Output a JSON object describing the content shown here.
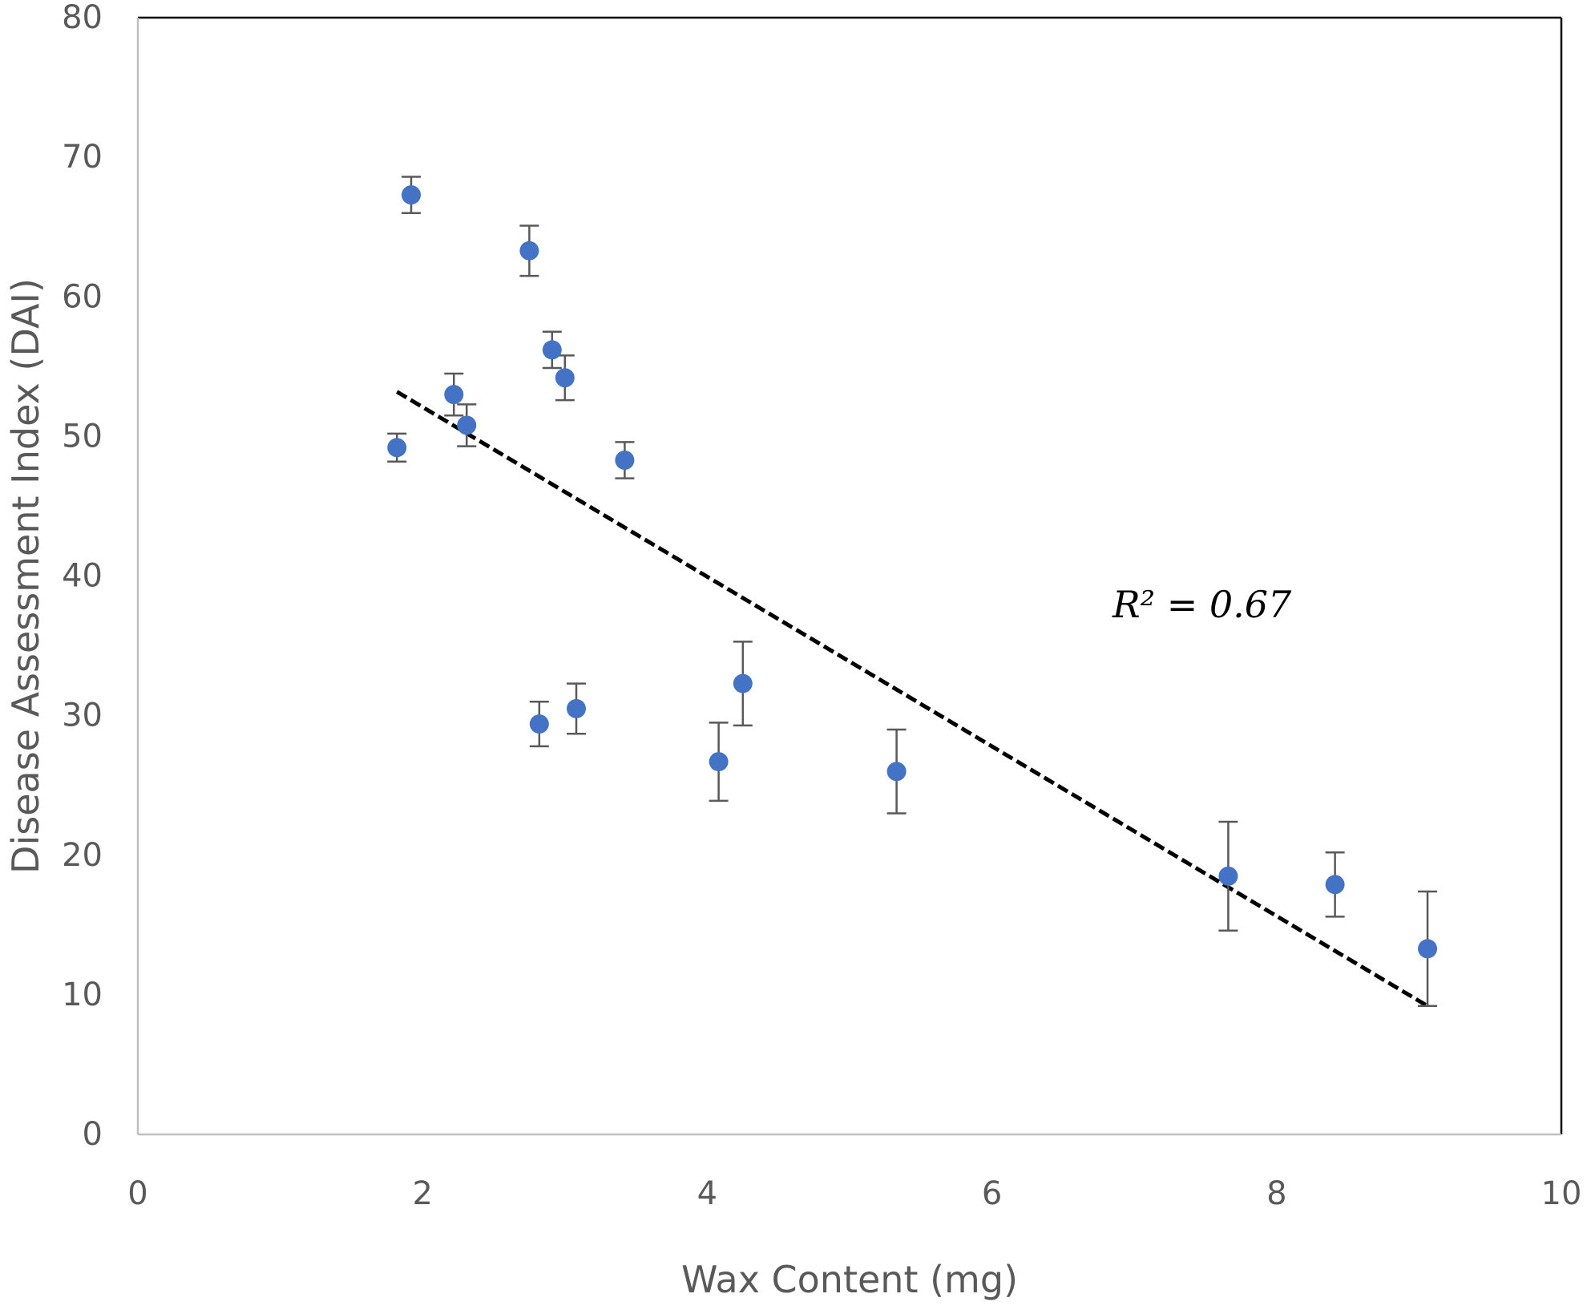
{
  "chart_data": {
    "type": "scatter",
    "xlabel": "Wax Content (mg)",
    "ylabel": "Disease Assessment Index (DAI)",
    "xlim": [
      0,
      10
    ],
    "ylim": [
      0,
      80
    ],
    "xticks": [
      0,
      2,
      4,
      6,
      8,
      10
    ],
    "yticks": [
      0,
      10,
      20,
      30,
      40,
      50,
      60,
      70,
      80
    ],
    "grid": false,
    "legend": "none",
    "series": [
      {
        "points": [
          {
            "x": 1.82,
            "y": 49.2,
            "err": 1.0
          },
          {
            "x": 1.92,
            "y": 67.3,
            "err": 1.3
          },
          {
            "x": 2.22,
            "y": 53.0,
            "err": 1.5
          },
          {
            "x": 2.31,
            "y": 50.8,
            "err": 1.5
          },
          {
            "x": 2.75,
            "y": 63.3,
            "err": 1.8
          },
          {
            "x": 2.82,
            "y": 29.4,
            "err": 1.6
          },
          {
            "x": 2.91,
            "y": 56.2,
            "err": 1.3
          },
          {
            "x": 3.0,
            "y": 54.2,
            "err": 1.6
          },
          {
            "x": 3.08,
            "y": 30.5,
            "err": 1.8
          },
          {
            "x": 3.42,
            "y": 48.3,
            "err": 1.3
          },
          {
            "x": 4.08,
            "y": 26.7,
            "err": 2.8
          },
          {
            "x": 4.25,
            "y": 32.3,
            "err": 3.0
          },
          {
            "x": 5.33,
            "y": 26.0,
            "err": 3.0
          },
          {
            "x": 7.66,
            "y": 18.5,
            "err": 3.9
          },
          {
            "x": 8.41,
            "y": 17.9,
            "err": 2.3
          },
          {
            "x": 9.06,
            "y": 13.3,
            "err": 4.1
          }
        ]
      }
    ],
    "trendline": {
      "type": "linear",
      "style": "dashed",
      "x": [
        1.82,
        9.06
      ],
      "y": [
        53.2,
        9.2
      ]
    },
    "annotations": {
      "r2": "R² = 0.67"
    },
    "colors": {
      "marker": "#4472C4",
      "error_bar": "#595959",
      "trendline": "#000000",
      "frame": "#000000",
      "axis": "#bfbfbf"
    }
  }
}
